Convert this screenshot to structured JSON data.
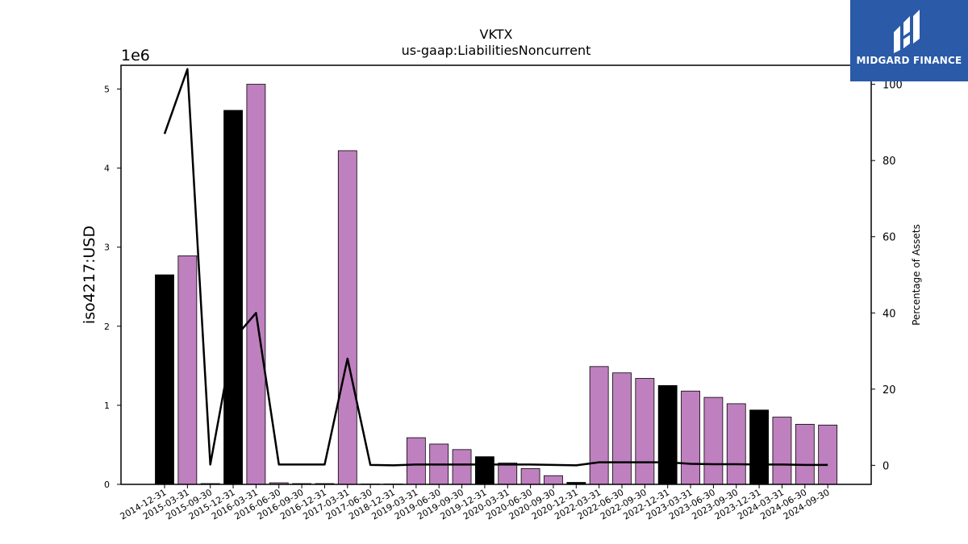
{
  "chart_data": {
    "type": "bar",
    "title": "VKTX",
    "subtitle": "us-gaap:LiabilitiesNoncurrent",
    "ylabel": "iso4217:USD",
    "y2label": "Percentage of Assets",
    "y_offset_text": "1e6",
    "y_scale": 1000000,
    "ylim": [
      0,
      5300000
    ],
    "y2lim": [
      -5,
      105
    ],
    "y_ticks": [
      0,
      1,
      2,
      3,
      4,
      5
    ],
    "y2_ticks": [
      0,
      20,
      40,
      60,
      80,
      100
    ],
    "grid": false,
    "legend": "none",
    "categories": [
      "2014-12-31",
      "2015-03-31",
      "2015-09-30",
      "2015-12-31",
      "2016-03-31",
      "2016-06-30",
      "2016-09-30",
      "2016-12-31",
      "2017-03-31",
      "2017-06-30",
      "2018-12-31",
      "2019-03-31",
      "2019-06-30",
      "2019-09-30",
      "2019-12-31",
      "2020-03-31",
      "2020-06-30",
      "2020-09-30",
      "2020-12-31",
      "2022-03-31",
      "2022-06-30",
      "2022-09-30",
      "2022-12-31",
      "2023-03-31",
      "2023-06-30",
      "2023-09-30",
      "2023-12-31",
      "2024-03-31",
      "2024-06-30",
      "2024-09-30"
    ],
    "values": [
      2650000,
      2890000,
      10000,
      4730000,
      5060000,
      20000,
      10000,
      10000,
      4220000,
      0,
      0,
      590000,
      510000,
      440000,
      350000,
      270000,
      200000,
      110000,
      25000,
      1490000,
      1410000,
      1340000,
      1250000,
      1180000,
      1100000,
      1020000,
      940000,
      850000,
      760000,
      750000
    ],
    "year_end": [
      true,
      false,
      false,
      true,
      false,
      false,
      false,
      true,
      false,
      false,
      true,
      false,
      false,
      false,
      true,
      false,
      false,
      false,
      true,
      false,
      false,
      false,
      true,
      false,
      false,
      false,
      true,
      false,
      false,
      false
    ],
    "pct_of_assets": [
      87,
      104,
      0.2,
      33,
      40,
      0.2,
      0.2,
      0.2,
      28,
      0.1,
      0,
      0.2,
      0.2,
      0.2,
      0.2,
      0.2,
      0.2,
      0.1,
      0,
      0.8,
      0.8,
      0.8,
      0.8,
      0.4,
      0.3,
      0.3,
      0.2,
      0.2,
      0.1,
      0.1
    ],
    "colors": {
      "bar": "#bf80bf",
      "bar_year_end": "#000000",
      "line": "#000000"
    }
  },
  "logo": {
    "text": "MIDGARD FINANCE",
    "bg": "#2a5aa8"
  }
}
